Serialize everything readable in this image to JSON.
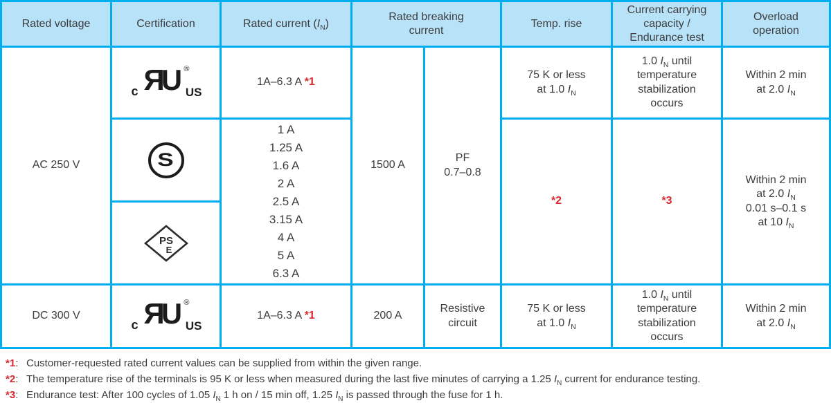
{
  "colors": {
    "border_cyan": "#00aeef",
    "header_bg": "#b8e2f7",
    "text": "#3c3c3e",
    "footnote_red": "#d7282f",
    "logo_black": "#1c1c1c"
  },
  "table": {
    "headers": {
      "rated_voltage": "Rated voltage",
      "certification": "Certification",
      "rated_current": "Rated current (I_N)",
      "breaking_current": "Rated breaking current",
      "temp_rise": "Temp. rise",
      "capacity": "Current carrying capacity / Endurance test",
      "overload": "Overload operation"
    },
    "ac": {
      "voltage": "AC 250 V",
      "rated_current_range": "1A–6.3 A *1",
      "rated_current_values": "1 A\n1.25 A\n1.6 A\n2 A\n2.5 A\n3.15 A\n4 A\n5 A\n6.3 A",
      "breaking_current": "1500 A",
      "power_factor": "PF\n0.7–0.8",
      "temp_rise": "75 K or less\nat 1.0 I_N",
      "temp_rise_note": "*2",
      "capacity": "1.0 I_N until\ntemperature\nstabilization\noccurs",
      "capacity_note": "*3",
      "overload_row1": "Within 2 min\nat 2.0 I_N",
      "overload_row23": "Within 2 min\nat 2.0 I_N\n0.01 s–0.1 s\nat 10 I_N"
    },
    "dc": {
      "voltage": "DC 300 V",
      "rated_current_range": "1A–6.3 A *1",
      "breaking_current": "200 A",
      "circuit": "Resistive\ncircuit",
      "temp_rise": "75 K or less\nat 1.0 I_N",
      "capacity": "1.0 I_N until\ntemperature\nstabilization\noccurs",
      "overload": "Within 2 min\nat 2.0 I_N"
    }
  },
  "logos": {
    "culus": {
      "c": "c",
      "mark": "ЯU",
      "reg": "®",
      "us": "US"
    },
    "s_mark": "S",
    "pse": {
      "ps": "PS",
      "e": "E"
    }
  },
  "footnotes": [
    {
      "label": "*1:",
      "text": "Customer-requested rated current values can be supplied from within the given range."
    },
    {
      "label": "*2:",
      "text": "The temperature rise of the terminals is 95 K or less when measured during the last five minutes of carrying a 1.25 I_N current for endurance testing."
    },
    {
      "label": "*3:",
      "text": "Endurance test: After 100 cycles of 1.05 I_N 1 h on / 15 min off, 1.25 I_N is passed through the fuse for 1 h."
    }
  ]
}
